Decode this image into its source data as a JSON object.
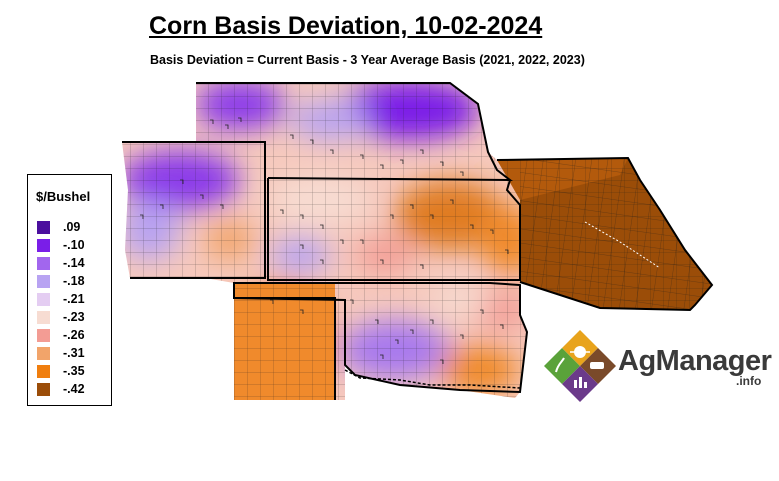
{
  "title": "Corn Basis Deviation, 10-02-2024",
  "subtitle": "Basis Deviation = Current Basis - 3 Year Average Basis (2021, 2022, 2023)",
  "legend": {
    "title": "$/Bushel",
    "items": [
      {
        "label": ".09",
        "color": "#4b0f9e"
      },
      {
        "label": "-.10",
        "color": "#7a1ee8"
      },
      {
        "label": "-.14",
        "color": "#a266ee"
      },
      {
        "label": "-.18",
        "color": "#b8a3f2"
      },
      {
        "label": "-.21",
        "color": "#e4cdf2"
      },
      {
        "label": "-.23",
        "color": "#f7dcd2"
      },
      {
        "label": "-.26",
        "color": "#f39c94"
      },
      {
        "label": "-.31",
        "color": "#f2a46a"
      },
      {
        "label": "-.35",
        "color": "#f07e0e"
      },
      {
        "label": "-.42",
        "color": "#9b4d08"
      }
    ]
  },
  "logo": {
    "name": "AgManager",
    "suffix": ".info"
  }
}
